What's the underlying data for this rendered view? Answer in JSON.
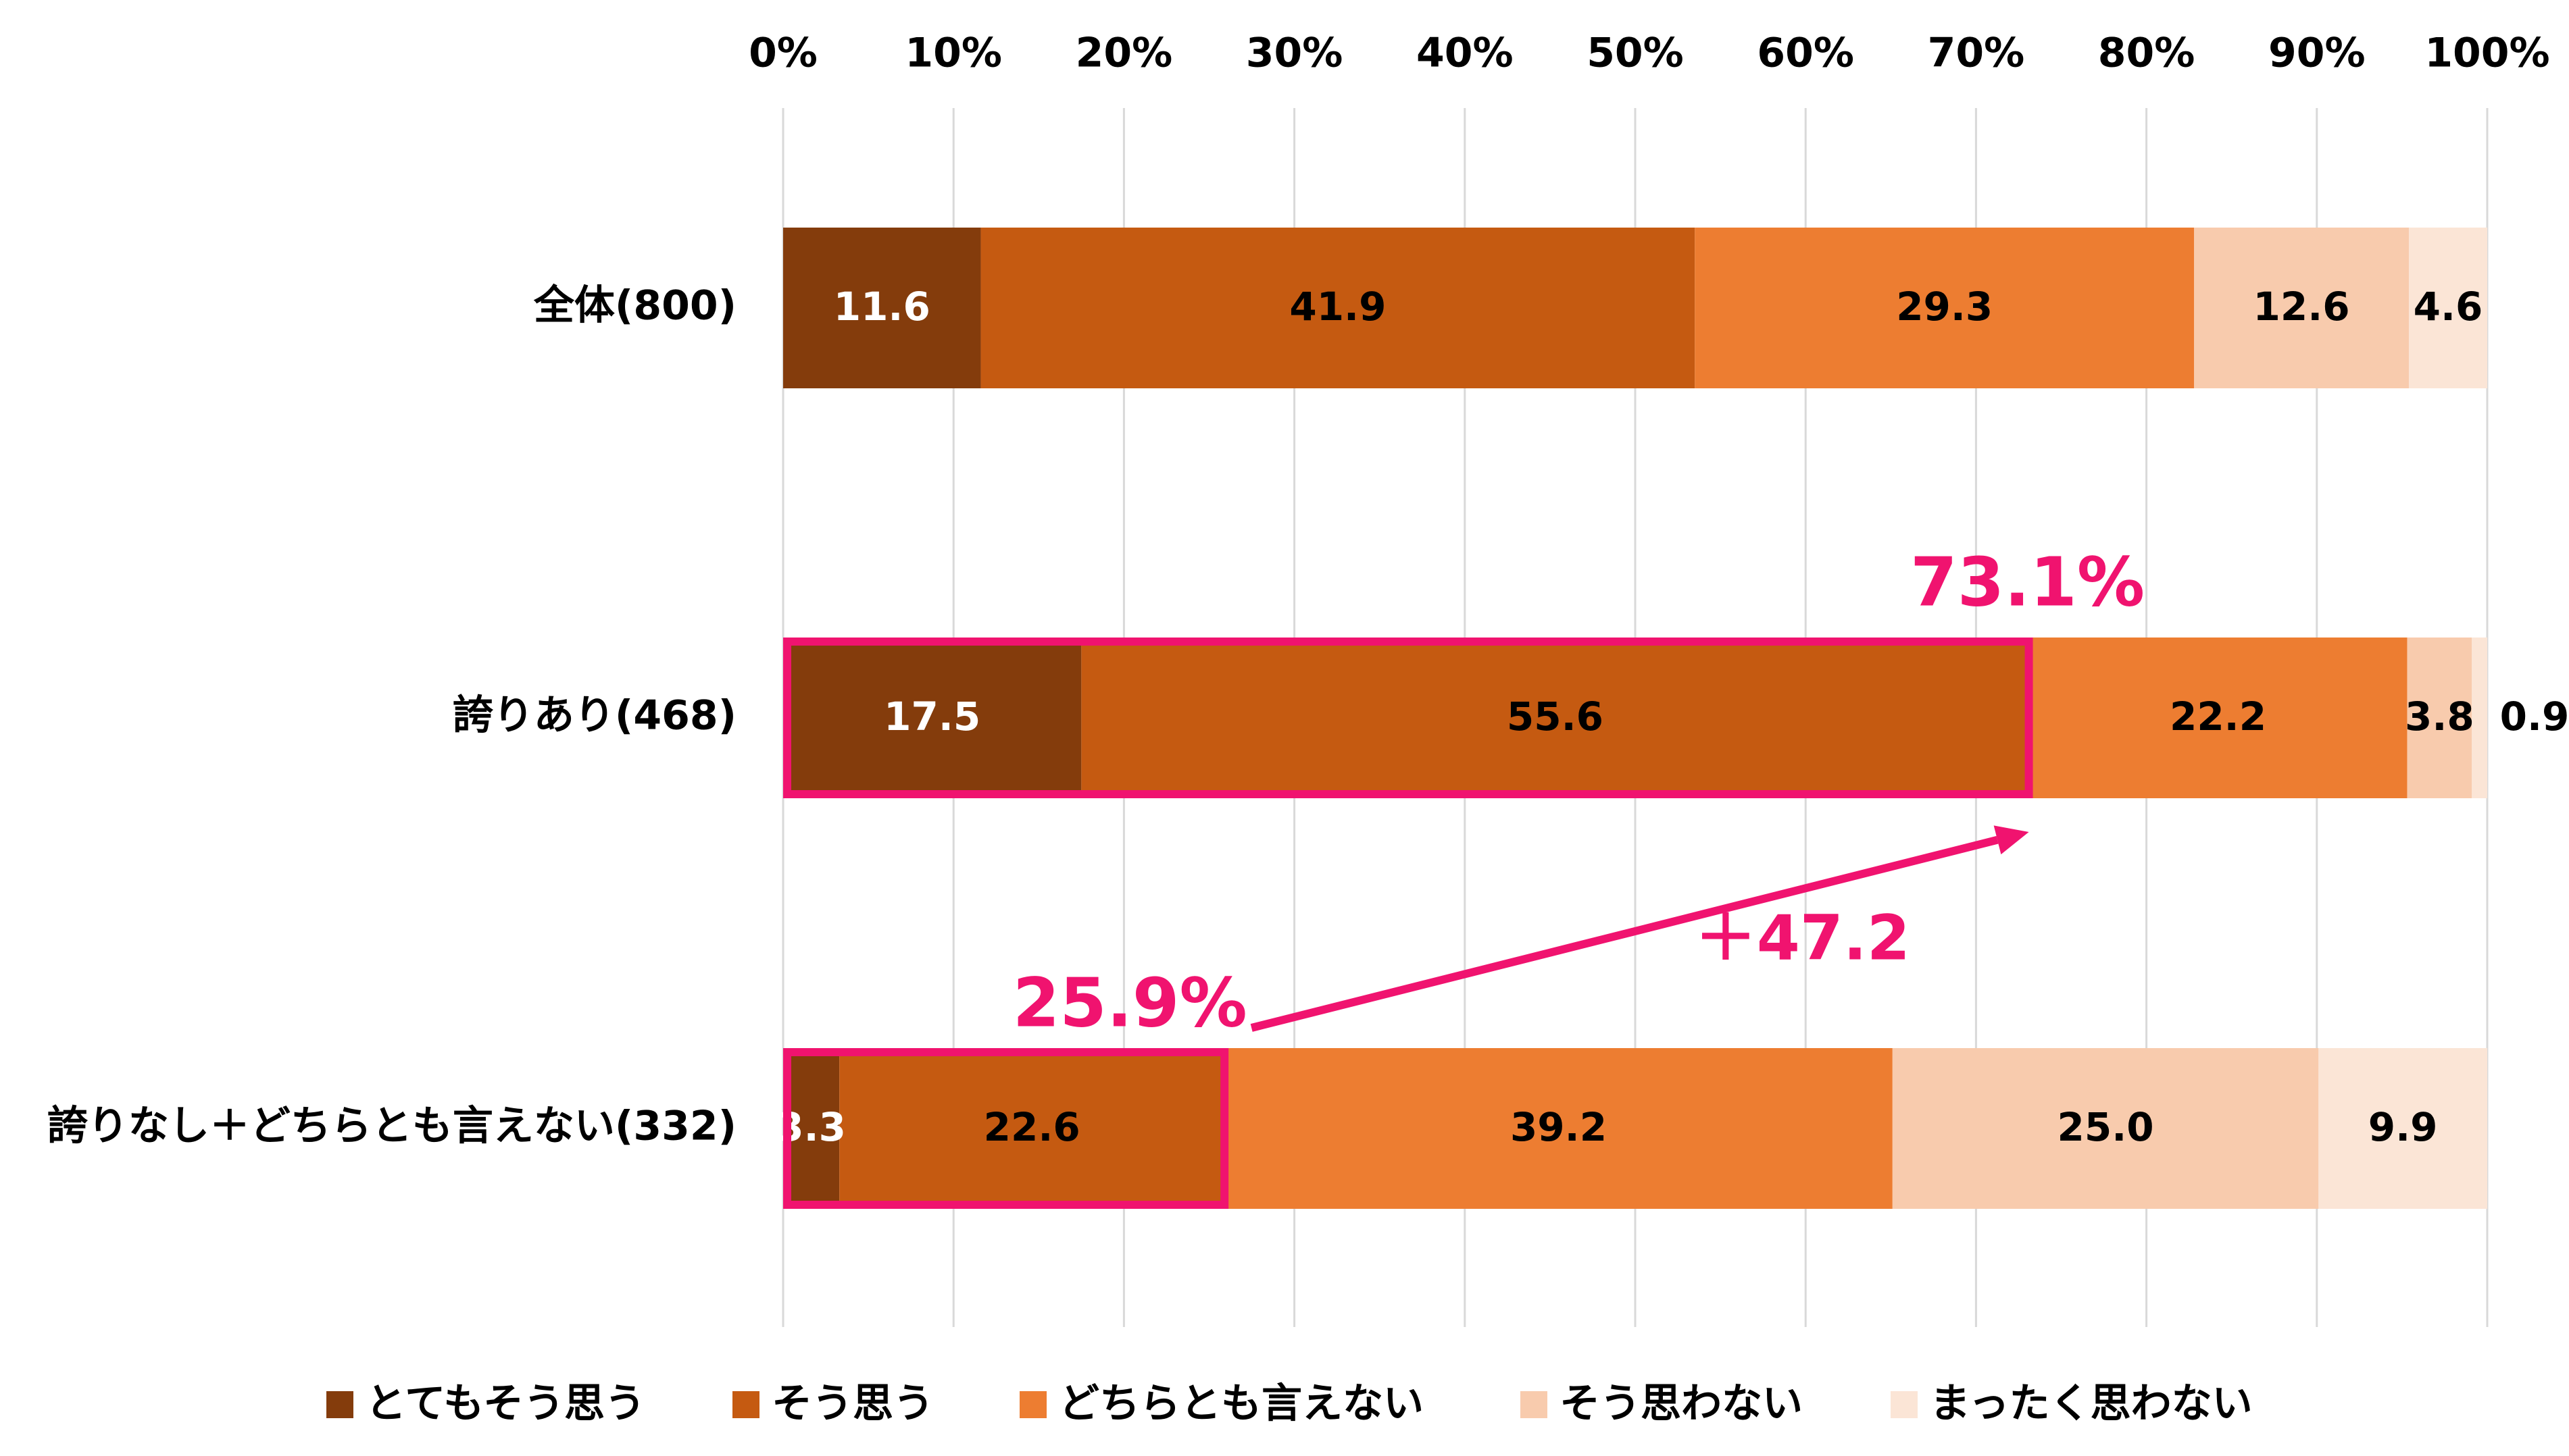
{
  "chart_data": {
    "type": "bar",
    "orientation": "horizontal",
    "stacked": true,
    "x_ticks": [
      "0%",
      "10%",
      "20%",
      "30%",
      "40%",
      "50%",
      "60%",
      "70%",
      "80%",
      "90%",
      "100%"
    ],
    "xlim": [
      0,
      100
    ],
    "grid": true,
    "legend_position": "bottom",
    "categories": [
      "全体(800)",
      "誇りあり(468)",
      "誇りなし＋どちらとも言えない(332)"
    ],
    "series": [
      {
        "name": "とてもそう思う",
        "color": "#843c0c",
        "label_color": "#ffffff",
        "values": [
          11.6,
          17.5,
          3.3
        ],
        "labels": [
          "11.6",
          "17.5",
          "3.3"
        ]
      },
      {
        "name": "そう思う",
        "color": "#c55a11",
        "label_color": "#000000",
        "values": [
          41.9,
          55.6,
          22.6
        ],
        "labels": [
          "41.9",
          "55.6",
          "22.6"
        ]
      },
      {
        "name": "どちらとも言えない",
        "color": "#ed7d31",
        "label_color": "#000000",
        "values": [
          29.3,
          22.2,
          39.2
        ],
        "labels": [
          "29.3",
          "22.2",
          "39.2"
        ]
      },
      {
        "name": "そう思わない",
        "color": "#f8cbad",
        "label_color": "#000000",
        "values": [
          12.6,
          3.8,
          25.0
        ],
        "labels": [
          "12.6",
          "3.8",
          "25.0"
        ]
      },
      {
        "name": "まったく思わない",
        "color": "#fbe5d6",
        "label_color": "#000000",
        "values": [
          4.6,
          0.9,
          9.9
        ],
        "labels": [
          "4.6",
          "0.9",
          "9.9"
        ]
      }
    ],
    "annotations": {
      "color": "#f0136f",
      "top_share": {
        "label": "73.1%",
        "value": 73.1,
        "category_index": 1
      },
      "bottom_share": {
        "label": "25.9%",
        "value": 25.9,
        "category_index": 2
      },
      "difference": {
        "label": "＋47.2"
      }
    }
  }
}
